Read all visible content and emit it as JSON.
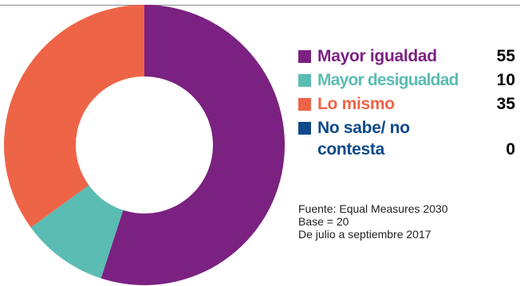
{
  "chart_data": {
    "type": "pie",
    "donut": true,
    "title": "",
    "categories": [
      "Mayor igualdad",
      "Mayor desigualdad",
      "Lo mismo",
      "No sabe/ no contesta"
    ],
    "values": [
      55,
      10,
      35,
      0
    ],
    "colors": [
      "#7b2181",
      "#5bbcb3",
      "#ee6447",
      "#0e4a8a"
    ],
    "legend_position": "right",
    "legend": [
      {
        "label": "Mayor igualdad",
        "value": "55",
        "color": "#7b2181"
      },
      {
        "label": "Mayor desigualdad",
        "value": "10",
        "color": "#5bbcb3"
      },
      {
        "label": "Lo mismo",
        "value": "35",
        "color": "#ee6447"
      },
      {
        "label": "No sabe/ no contesta",
        "value": "0",
        "color": "#0e4a8a"
      }
    ]
  },
  "source": {
    "line1": "Fuente:  Equal Measures 2030",
    "line2": "Base = 20",
    "line3": "De julio a septiembre 2017"
  }
}
